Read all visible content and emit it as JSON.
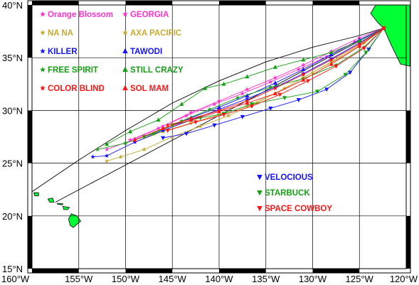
{
  "map": {
    "lon_range": [
      -160,
      -120
    ],
    "lat_range": [
      15,
      40
    ],
    "grid": true,
    "land_color": "#00ff33",
    "lon_ticks": [
      {
        "value": -160,
        "label": "160°W"
      },
      {
        "value": -155,
        "label": "155°W"
      },
      {
        "value": -150,
        "label": "150°W"
      },
      {
        "value": -145,
        "label": "145°W"
      },
      {
        "value": -140,
        "label": "140°W"
      },
      {
        "value": -135,
        "label": "135°W"
      },
      {
        "value": -130,
        "label": "130°W"
      },
      {
        "value": -125,
        "label": "125°W"
      },
      {
        "value": -120,
        "label": "120°W"
      }
    ],
    "lat_ticks": [
      {
        "value": 40,
        "label": "40°N"
      },
      {
        "value": 35,
        "label": "35°N"
      },
      {
        "value": 30,
        "label": "30°N"
      },
      {
        "value": 25,
        "label": "25°N"
      },
      {
        "value": 20,
        "label": "20°N"
      },
      {
        "value": 15,
        "label": "15°N"
      }
    ],
    "great_circle": {
      "color": "#000000",
      "points": [
        [
          -160,
          22.3
        ],
        [
          -155,
          25.3
        ],
        [
          -150,
          28.1
        ],
        [
          -145,
          30.7
        ],
        [
          -140,
          32.8
        ],
        [
          -135,
          34.6
        ],
        [
          -130,
          36.0
        ],
        [
          -125,
          37.1
        ],
        [
          -122.4,
          37.8
        ]
      ]
    },
    "rhumb_line": {
      "color": "#000000",
      "points": [
        [
          -122.4,
          37.8
        ],
        [
          -157.5,
          21.3
        ]
      ]
    },
    "land": [
      {
        "name": "California",
        "points": [
          [
            -123.2,
            40
          ],
          [
            -119.6,
            40
          ],
          [
            -119.6,
            34.2
          ],
          [
            -120.6,
            34.4
          ],
          [
            -121.6,
            36.2
          ],
          [
            -122.4,
            37.8
          ],
          [
            -123.0,
            38.3
          ],
          [
            -123.8,
            39.2
          ],
          [
            -123.4,
            39.8
          ]
        ]
      },
      {
        "name": "Hawaii",
        "points": [
          [
            -155.8,
            20.2
          ],
          [
            -155.2,
            20.0
          ],
          [
            -154.8,
            19.5
          ],
          [
            -155.6,
            18.9
          ],
          [
            -155.9,
            19.1
          ],
          [
            -156.1,
            19.7
          ]
        ]
      },
      {
        "name": "Maui",
        "points": [
          [
            -156.7,
            20.9
          ],
          [
            -156.0,
            20.8
          ],
          [
            -156.2,
            20.6
          ],
          [
            -156.6,
            20.6
          ]
        ]
      },
      {
        "name": "Molokai",
        "points": [
          [
            -157.3,
            21.2
          ],
          [
            -156.7,
            21.15
          ],
          [
            -156.75,
            21.05
          ],
          [
            -157.25,
            21.1
          ]
        ]
      },
      {
        "name": "Oahu",
        "points": [
          [
            -158.3,
            21.6
          ],
          [
            -157.8,
            21.7
          ],
          [
            -157.65,
            21.3
          ],
          [
            -158.1,
            21.3
          ]
        ]
      },
      {
        "name": "Kauai",
        "points": [
          [
            -159.8,
            22.2
          ],
          [
            -159.3,
            22.2
          ],
          [
            -159.3,
            21.9
          ],
          [
            -159.7,
            21.9
          ]
        ]
      }
    ]
  },
  "legend_left": [
    {
      "label": "Orange Blossom",
      "color": "#ff33cc",
      "symbol": "star"
    },
    {
      "label": "NA NA",
      "color": "#c8aa32",
      "symbol": "star"
    },
    {
      "label": "KILLER",
      "color": "#1414ff",
      "symbol": "star"
    },
    {
      "label": "FREE SPIRIT",
      "color": "#14a014",
      "symbol": "star"
    },
    {
      "label": "COLOR BLIND",
      "color": "#ff1414",
      "symbol": "star"
    }
  ],
  "legend_mid": [
    {
      "label": "GEORGIA",
      "color": "#ff33cc",
      "symbol": "star"
    },
    {
      "label": "AXA PACIFIC",
      "color": "#c8aa32",
      "symbol": "star"
    },
    {
      "label": "TAWODI",
      "color": "#1414ff",
      "symbol": "triangle-up"
    },
    {
      "label": "STILL CRAZY",
      "color": "#14a014",
      "symbol": "triangle-up"
    },
    {
      "label": "SOL MAM",
      "color": "#ff1414",
      "symbol": "triangle-up"
    }
  ],
  "legend_right": [
    {
      "label": "VELOCIOUS",
      "color": "#1414ff",
      "symbol": "triangle-down"
    },
    {
      "label": "STARBUCK",
      "color": "#14a014",
      "symbol": "triangle-down"
    },
    {
      "label": "SPACE COWBOY",
      "color": "#ff1414",
      "symbol": "triangle-down"
    }
  ],
  "tracks": [
    {
      "boat": "Orange Blossom",
      "color": "#ff33cc",
      "symbol": "star",
      "points": [
        [
          -122.4,
          37.8
        ],
        [
          -125,
          36.9
        ],
        [
          -128,
          35.6
        ],
        [
          -131,
          34.3
        ],
        [
          -134,
          33.1
        ],
        [
          -137,
          32.0
        ],
        [
          -140,
          30.9
        ],
        [
          -143,
          29.8
        ],
        [
          -146,
          28.5
        ],
        [
          -149,
          27.3
        ],
        [
          -152,
          26.3
        ]
      ]
    },
    {
      "boat": "GEORGIA",
      "color": "#ff33cc",
      "symbol": "star",
      "points": [
        [
          -122.4,
          37.8
        ],
        [
          -125.5,
          36.5
        ],
        [
          -128.5,
          35.1
        ],
        [
          -131.5,
          33.9
        ],
        [
          -134.5,
          32.7
        ],
        [
          -137.5,
          31.6
        ],
        [
          -140.5,
          30.6
        ],
        [
          -143.5,
          29.5
        ],
        [
          -146.5,
          28.3
        ],
        [
          -149.5,
          27.2
        ]
      ]
    },
    {
      "boat": "NA NA",
      "color": "#c8aa32",
      "symbol": "star",
      "points": [
        [
          -122.4,
          37.8
        ],
        [
          -124.5,
          36.4
        ],
        [
          -127,
          35.0
        ],
        [
          -130,
          33.6
        ],
        [
          -133,
          32.1
        ],
        [
          -136,
          30.7
        ],
        [
          -139,
          29.5
        ],
        [
          -142,
          28.5
        ],
        [
          -145,
          27.5
        ],
        [
          -148,
          26.3
        ],
        [
          -150.5,
          25.6
        ],
        [
          -152,
          25.2
        ]
      ]
    },
    {
      "boat": "AXA PACIFIC",
      "color": "#c8aa32",
      "symbol": "star",
      "points": [
        [
          -122.4,
          37.8
        ],
        [
          -125,
          36.2
        ],
        [
          -128,
          34.6
        ],
        [
          -131,
          33.1
        ],
        [
          -134,
          31.6
        ],
        [
          -137,
          30.4
        ],
        [
          -140,
          29.6
        ],
        [
          -143,
          28.8
        ],
        [
          -146,
          28.0
        ],
        [
          -149,
          27.0
        ]
      ]
    },
    {
      "boat": "KILLER",
      "color": "#1414ff",
      "symbol": "star",
      "points": [
        [
          -122.4,
          37.8
        ],
        [
          -125,
          36.4
        ],
        [
          -128,
          34.9
        ],
        [
          -131,
          33.5
        ],
        [
          -134,
          32.2
        ],
        [
          -137,
          31.1
        ],
        [
          -140,
          30.1
        ],
        [
          -143,
          29.1
        ],
        [
          -146,
          28.1
        ],
        [
          -149,
          27.0
        ],
        [
          -152,
          25.7
        ],
        [
          -153.5,
          25.6
        ]
      ]
    },
    {
      "boat": "TAWODI",
      "color": "#1414ff",
      "symbol": "triangle-up",
      "points": [
        [
          -122.4,
          37.8
        ],
        [
          -125,
          36.7
        ],
        [
          -128,
          35.3
        ],
        [
          -131,
          33.9
        ],
        [
          -134,
          32.6
        ],
        [
          -137,
          31.4
        ],
        [
          -140,
          30.3
        ],
        [
          -143,
          29.3
        ],
        [
          -146,
          28.2
        ]
      ]
    },
    {
      "boat": "VELOCIOUS",
      "color": "#1414ff",
      "symbol": "triangle-down",
      "points": [
        [
          -122.4,
          37.8
        ],
        [
          -124,
          35.8
        ],
        [
          -126,
          33.6
        ],
        [
          -128.5,
          32.0
        ],
        [
          -131.5,
          31.0
        ],
        [
          -134.5,
          30.2
        ],
        [
          -137.5,
          29.4
        ],
        [
          -140.5,
          28.6
        ],
        [
          -143.5,
          27.8
        ],
        [
          -146,
          27.4
        ]
      ]
    },
    {
      "boat": "FREE SPIRIT",
      "color": "#14a014",
      "symbol": "star",
      "points": [
        [
          -122.4,
          37.8
        ],
        [
          -124.5,
          36.0
        ],
        [
          -127.5,
          34.3
        ],
        [
          -131,
          33.0
        ],
        [
          -134.5,
          32.2
        ],
        [
          -138,
          31.2
        ],
        [
          -141,
          30.1
        ],
        [
          -144,
          29.0
        ],
        [
          -147,
          27.8
        ],
        [
          -150,
          26.9
        ],
        [
          -153,
          26.3
        ]
      ]
    },
    {
      "boat": "STILL CRAZY",
      "color": "#14a014",
      "symbol": "triangle-up",
      "points": [
        [
          -122.4,
          37.8
        ],
        [
          -125,
          36.6
        ],
        [
          -128,
          35.5
        ],
        [
          -131,
          34.8
        ],
        [
          -134,
          34.1
        ],
        [
          -137,
          33.2
        ],
        [
          -139.5,
          32.5
        ],
        [
          -141.5,
          32.1
        ],
        [
          -144,
          30.6
        ],
        [
          -146.5,
          29.1
        ],
        [
          -149.5,
          28.0
        ],
        [
          -152,
          26.8
        ]
      ]
    },
    {
      "boat": "STARBUCK",
      "color": "#14a014",
      "symbol": "triangle-down",
      "points": [
        [
          -122.4,
          37.8
        ],
        [
          -124.3,
          35.5
        ],
        [
          -126.5,
          33.4
        ],
        [
          -129.5,
          31.8
        ],
        [
          -133,
          31.2
        ],
        [
          -136.5,
          30.6
        ],
        [
          -139.5,
          29.7
        ],
        [
          -142,
          29.3
        ],
        [
          -145,
          28.6
        ],
        [
          -148,
          27.5
        ]
      ]
    },
    {
      "boat": "COLOR BLIND",
      "color": "#ff1414",
      "symbol": "star",
      "points": [
        [
          -122.4,
          37.8
        ],
        [
          -125,
          36.3
        ],
        [
          -128,
          34.8
        ],
        [
          -131,
          33.4
        ],
        [
          -134,
          32.1
        ],
        [
          -137,
          30.9
        ],
        [
          -140,
          30.0
        ],
        [
          -143,
          29.2
        ],
        [
          -145.5,
          28.6
        ]
      ]
    },
    {
      "boat": "SOL MAM",
      "color": "#ff1414",
      "symbol": "triangle-up",
      "points": [
        [
          -122.4,
          37.8
        ],
        [
          -125,
          36.1
        ],
        [
          -128,
          34.4
        ],
        [
          -131,
          32.9
        ],
        [
          -134,
          31.6
        ],
        [
          -137,
          30.7
        ],
        [
          -140,
          29.9
        ],
        [
          -143,
          29.1
        ],
        [
          -146,
          28.3
        ],
        [
          -149,
          27.2
        ]
      ]
    },
    {
      "boat": "SPACE COWBOY",
      "color": "#ff1414",
      "symbol": "triangle-down",
      "points": [
        [
          -122.4,
          37.8
        ],
        [
          -124.5,
          35.9
        ],
        [
          -127.5,
          34.2
        ],
        [
          -130.5,
          32.8
        ],
        [
          -133.5,
          31.5
        ],
        [
          -136.5,
          30.4
        ],
        [
          -139.5,
          29.6
        ],
        [
          -142.5,
          28.9
        ],
        [
          -145.5,
          28.1
        ]
      ]
    }
  ]
}
